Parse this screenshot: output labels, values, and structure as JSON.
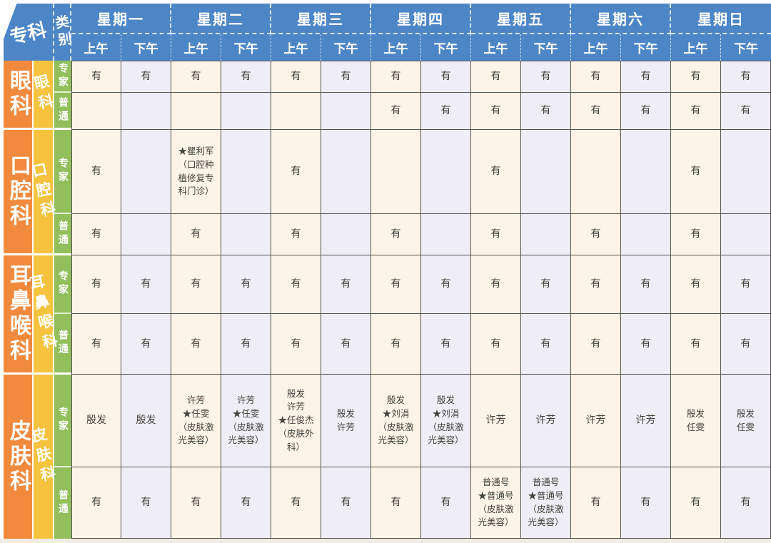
{
  "table": {
    "corner_specialty": "专科",
    "corner_category": "类别",
    "am_label": "上午",
    "pm_label": "下午",
    "days": [
      "星期一",
      "星期二",
      "星期三",
      "星期四",
      "星期五",
      "星期六",
      "星期日"
    ],
    "sections": [
      {
        "name": "眼科",
        "rows": [
          {
            "category": "专家",
            "cells": [
              "有",
              "有",
              "有",
              "有",
              "有",
              "有",
              "有",
              "有",
              "有",
              "有",
              "有",
              "有",
              "有",
              "有"
            ]
          },
          {
            "category": "普通",
            "cells": [
              "",
              "",
              "",
              "",
              "",
              "",
              "有",
              "有",
              "有",
              "有",
              "有",
              "有",
              "有",
              "有"
            ]
          }
        ]
      },
      {
        "name": "口腔科",
        "rows": [
          {
            "category": "专家",
            "cells": [
              "有",
              "",
              "★瞿利军\n（口腔种\n植修复专\n科门诊）",
              "",
              "有",
              "",
              "",
              "",
              "有",
              "",
              "",
              "",
              "有",
              ""
            ]
          },
          {
            "category": "普通",
            "cells": [
              "有",
              "",
              "有",
              "",
              "有",
              "",
              "有",
              "",
              "有",
              "",
              "有",
              "",
              "有",
              ""
            ]
          }
        ]
      },
      {
        "name": "耳鼻喉科",
        "rows": [
          {
            "category": "专家",
            "cells": [
              "有",
              "有",
              "有",
              "有",
              "有",
              "有",
              "有",
              "有",
              "有",
              "有",
              "有",
              "有",
              "有",
              "有"
            ]
          },
          {
            "category": "普通",
            "cells": [
              "有",
              "有",
              "有",
              "有",
              "有",
              "有",
              "有",
              "有",
              "有",
              "有",
              "有",
              "有",
              "有",
              "有"
            ]
          }
        ]
      },
      {
        "name": "皮肤科",
        "rows": [
          {
            "category": "专家",
            "cells": [
              "殷发",
              "殷发",
              "许芳\n★任雯\n（皮肤激\n光美容）",
              "许芳\n★任雯\n（皮肤激\n光美容）",
              "殷发\n许芳\n★任俊杰\n（皮肤外\n科）",
              "殷发\n许芳",
              "殷发\n★刘涓\n（皮肤激\n光美容）",
              "殷发\n★刘涓\n（皮肤激\n光美容）",
              "许芳",
              "许芳",
              "许芳",
              "许芳",
              "殷发\n任雯",
              "殷发\n任雯"
            ]
          },
          {
            "category": "普通",
            "cells": [
              "有",
              "有",
              "有",
              "有",
              "有",
              "有",
              "有",
              "有",
              "普通号\n★普通号\n（皮肤激\n光美容）",
              "普通号\n★普通号\n（皮肤激\n光美容）",
              "有",
              "有",
              "有",
              "有"
            ]
          }
        ]
      }
    ]
  },
  "colors": {
    "header_blue": "#4d86c6",
    "specialty_orange": "#f18a3d",
    "specialty_yellow": "#f5c33e",
    "category_green": "#92bf5c",
    "cell_am_cream": "#fdf3e6",
    "cell_pm_lavender": "#efeef6",
    "grid_line": "#55534e",
    "cell_text": "#45423c"
  }
}
